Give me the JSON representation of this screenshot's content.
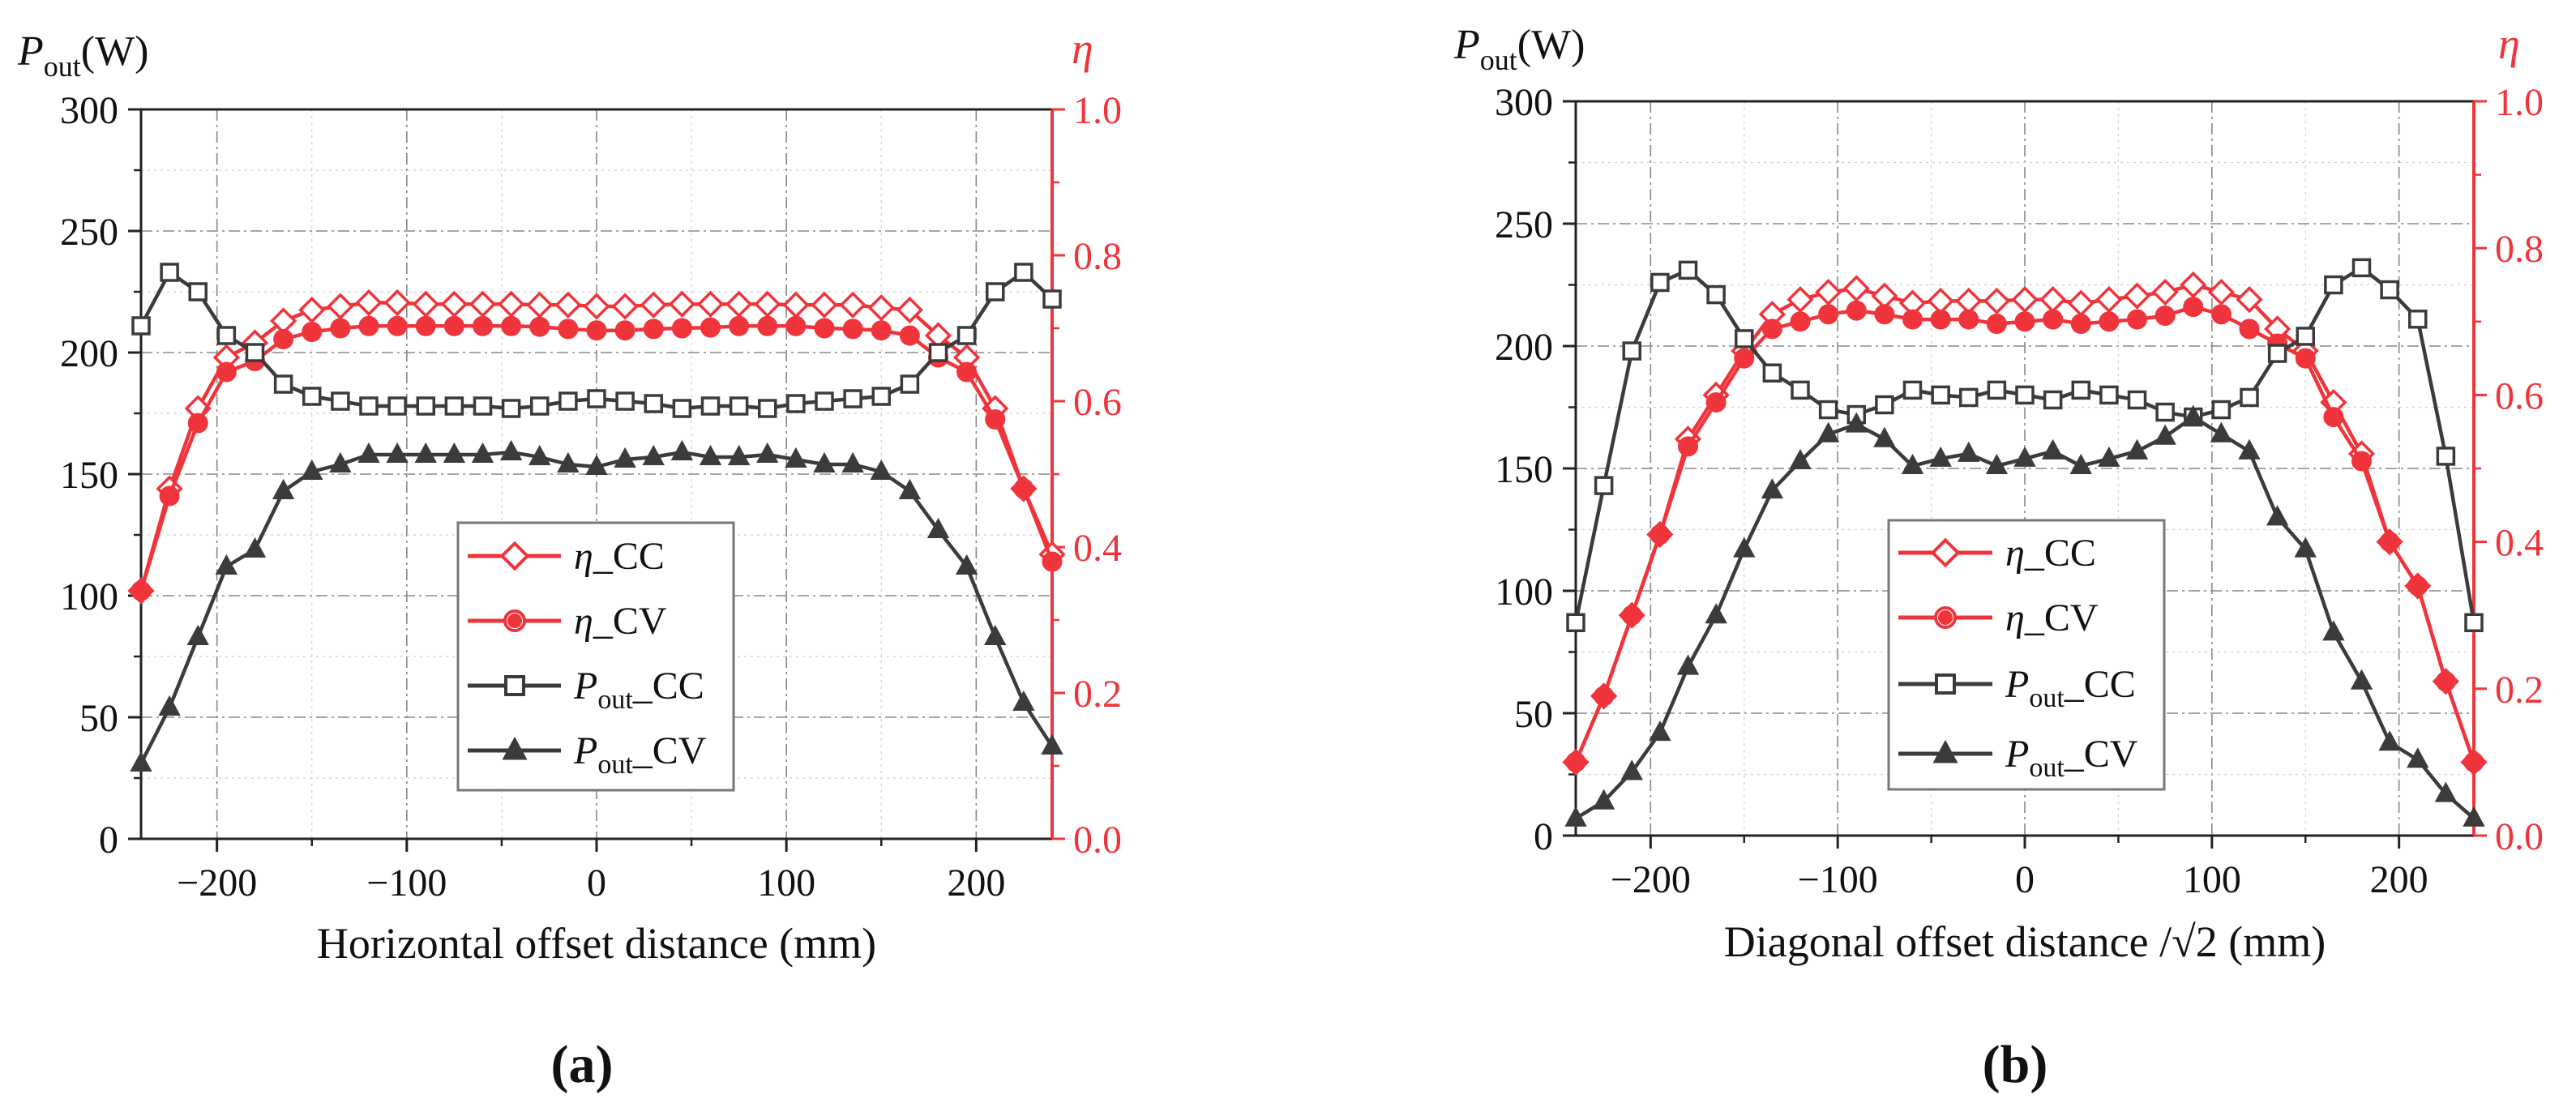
{
  "figure": {
    "panel_labels": [
      "(a)",
      "(b)"
    ],
    "legend_items": [
      {
        "prefix": "η",
        "suffix": "_CC"
      },
      {
        "prefix": "η",
        "suffix": "_CV"
      },
      {
        "prefix": "P",
        "sub": "out",
        "suffix": "_CC"
      },
      {
        "prefix": "P",
        "sub": "out",
        "suffix": "_CV"
      }
    ],
    "left_axis_label": {
      "main": "P",
      "sub": "out",
      "unit": "(W)"
    },
    "right_axis_label": "η",
    "colors": {
      "red": "#f0343b",
      "dark": "#3b3b3b",
      "grid": "#cfcfcf"
    }
  },
  "chart_data": [
    {
      "type": "line",
      "panel": "(a)",
      "xlabel": "Horizontal offset distance (mm)",
      "ylabel_left": "Pout(W)",
      "ylabel_right": "η",
      "xlim": [
        -240,
        240
      ],
      "ylim_left": [
        0,
        300
      ],
      "ylim_right": [
        0.0,
        1.0
      ],
      "xticks": [
        "−200",
        "−100",
        "0",
        "100",
        "200"
      ],
      "yticks_left": [
        "0",
        "50",
        "100",
        "150",
        "200",
        "250",
        "300"
      ],
      "yticks_right": [
        "0.0",
        "0.2",
        "0.4",
        "0.6",
        "0.8",
        "1.0"
      ],
      "x": [
        -240,
        -225,
        -210,
        -195,
        -180,
        -165,
        -150,
        -135,
        -120,
        -105,
        -90,
        -75,
        -60,
        -45,
        -30,
        -15,
        0,
        15,
        30,
        45,
        60,
        75,
        90,
        105,
        120,
        135,
        150,
        165,
        180,
        195,
        210,
        225,
        240
      ],
      "series": [
        {
          "name": "η_CC",
          "axis": "right",
          "marker": "diamond",
          "values": [
            0.34,
            0.48,
            0.59,
            0.66,
            0.68,
            0.71,
            0.725,
            0.73,
            0.735,
            0.735,
            0.733,
            0.733,
            0.733,
            0.733,
            0.732,
            0.732,
            0.73,
            0.73,
            0.732,
            0.733,
            0.733,
            0.733,
            0.733,
            0.732,
            0.732,
            0.732,
            0.728,
            0.725,
            0.69,
            0.66,
            0.59,
            0.48,
            0.39
          ]
        },
        {
          "name": "η_CV",
          "axis": "right",
          "marker": "circle",
          "values": [
            0.34,
            0.47,
            0.57,
            0.64,
            0.655,
            0.685,
            0.695,
            0.7,
            0.703,
            0.703,
            0.703,
            0.703,
            0.703,
            0.703,
            0.702,
            0.699,
            0.697,
            0.697,
            0.699,
            0.7,
            0.701,
            0.703,
            0.703,
            0.703,
            0.7,
            0.699,
            0.697,
            0.69,
            0.66,
            0.64,
            0.575,
            0.48,
            0.38
          ]
        },
        {
          "name": "Pout_CC",
          "axis": "left",
          "marker": "square",
          "values": [
            211,
            233,
            225,
            207,
            200,
            187,
            182,
            180,
            178,
            178,
            178,
            178,
            178,
            177,
            178,
            180,
            181,
            180,
            179,
            177,
            178,
            178,
            177,
            179,
            180,
            181,
            182,
            187,
            200,
            207,
            225,
            233,
            222
          ]
        },
        {
          "name": "Pout_CV",
          "axis": "left",
          "marker": "triangle",
          "values": [
            31,
            54,
            83,
            112,
            119,
            143,
            151,
            154,
            158,
            158,
            158,
            158,
            158,
            159,
            157,
            154,
            153,
            156,
            157,
            159,
            157,
            157,
            158,
            156,
            154,
            154,
            151,
            143,
            127,
            112,
            83,
            56,
            38
          ]
        }
      ]
    },
    {
      "type": "line",
      "panel": "(b)",
      "xlabel": "Diagonal offset distance /√2 (mm)",
      "ylabel_left": "Pout(W)",
      "ylabel_right": "η",
      "xlim": [
        -240,
        240
      ],
      "ylim_left": [
        0,
        300
      ],
      "ylim_right": [
        0.0,
        1.0
      ],
      "xticks": [
        "−200",
        "−100",
        "0",
        "100",
        "200"
      ],
      "yticks_left": [
        "0",
        "50",
        "100",
        "150",
        "200",
        "250",
        "300"
      ],
      "yticks_right": [
        "0.0",
        "0.2",
        "0.4",
        "0.6",
        "0.8",
        "1.0"
      ],
      "x": [
        -240,
        -225,
        -210,
        -195,
        -180,
        -165,
        -150,
        -135,
        -120,
        -105,
        -90,
        -75,
        -60,
        -45,
        -30,
        -15,
        0,
        15,
        30,
        45,
        60,
        75,
        90,
        105,
        120,
        135,
        150,
        165,
        180,
        195,
        210,
        225,
        240
      ],
      "series": [
        {
          "name": "η_CC",
          "axis": "right",
          "marker": "diamond",
          "values": [
            0.1,
            0.19,
            0.3,
            0.41,
            0.54,
            0.6,
            0.66,
            0.71,
            0.73,
            0.74,
            0.745,
            0.735,
            0.725,
            0.728,
            0.728,
            0.728,
            0.73,
            0.73,
            0.725,
            0.73,
            0.735,
            0.74,
            0.75,
            0.74,
            0.73,
            0.69,
            0.66,
            0.59,
            0.52,
            0.4,
            0.34,
            0.21,
            0.1
          ]
        },
        {
          "name": "η_CV",
          "axis": "right",
          "marker": "circle",
          "values": [
            0.1,
            0.19,
            0.3,
            0.41,
            0.53,
            0.59,
            0.65,
            0.69,
            0.7,
            0.71,
            0.715,
            0.71,
            0.703,
            0.703,
            0.703,
            0.697,
            0.7,
            0.703,
            0.697,
            0.7,
            0.703,
            0.708,
            0.72,
            0.71,
            0.69,
            0.67,
            0.65,
            0.57,
            0.51,
            0.4,
            0.34,
            0.21,
            0.1
          ]
        },
        {
          "name": "Pout_CC",
          "axis": "left",
          "marker": "square",
          "values": [
            87,
            143,
            198,
            226,
            231,
            221,
            203,
            189,
            182,
            174,
            172,
            176,
            182,
            180,
            179,
            182,
            180,
            178,
            182,
            180,
            178,
            173,
            171,
            174,
            179,
            197,
            204,
            225,
            232,
            223,
            211,
            155,
            87
          ]
        },
        {
          "name": "Pout_CV",
          "axis": "left",
          "marker": "triangle",
          "values": [
            7,
            14,
            26,
            42,
            69,
            90,
            117,
            141,
            153,
            164,
            168,
            162,
            151,
            154,
            156,
            151,
            154,
            157,
            151,
            154,
            157,
            163,
            171,
            164,
            157,
            130,
            117,
            83,
            63,
            38,
            31,
            17,
            7
          ]
        }
      ]
    }
  ]
}
